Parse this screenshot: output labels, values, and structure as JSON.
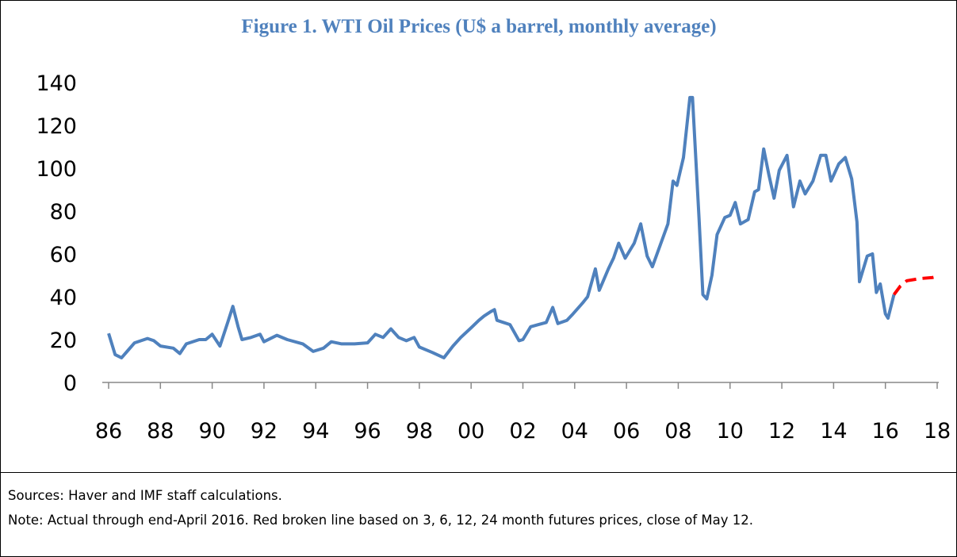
{
  "chart_data": {
    "type": "line",
    "title": "Figure 1. WTI Oil Prices (U$ a barrel, monthly average)",
    "notes": [
      "Sources: Haver and IMF staff calculations.",
      "Note: Actual through end-April 2016. Red broken line based on 3, 6, 12, 24 month futures prices, close of May 12."
    ],
    "xlim": [
      1986,
      2018
    ],
    "ylim": [
      0,
      140
    ],
    "yticks": [
      0,
      20,
      40,
      60,
      80,
      100,
      120,
      140
    ],
    "xticks": [
      {
        "value": 1986,
        "label": "86"
      },
      {
        "value": 1988,
        "label": "88"
      },
      {
        "value": 1990,
        "label": "90"
      },
      {
        "value": 1992,
        "label": "92"
      },
      {
        "value": 1994,
        "label": "94"
      },
      {
        "value": 1996,
        "label": "96"
      },
      {
        "value": 1998,
        "label": "98"
      },
      {
        "value": 2000,
        "label": "00"
      },
      {
        "value": 2002,
        "label": "02"
      },
      {
        "value": 2004,
        "label": "04"
      },
      {
        "value": 2006,
        "label": "06"
      },
      {
        "value": 2008,
        "label": "08"
      },
      {
        "value": 2010,
        "label": "10"
      },
      {
        "value": 2012,
        "label": "12"
      },
      {
        "value": 2014,
        "label": "14"
      },
      {
        "value": 2016,
        "label": "16"
      },
      {
        "value": 2018,
        "label": "18"
      }
    ],
    "grid": false,
    "series": [
      {
        "color": "#4f81bd",
        "line_style": "solid",
        "x": [
          1986.0,
          1986.25,
          1986.5,
          1986.75,
          1987.0,
          1987.5,
          1987.75,
          1988.0,
          1988.5,
          1988.75,
          1989.0,
          1989.5,
          1989.75,
          1990.0,
          1990.3,
          1990.6,
          1990.8,
          1991.0,
          1991.15,
          1991.5,
          1991.85,
          1992.0,
          1992.5,
          1992.9,
          1993.5,
          1993.9,
          1994.3,
          1994.6,
          1995.0,
          1995.5,
          1996.0,
          1996.3,
          1996.6,
          1996.9,
          1997.2,
          1997.5,
          1997.8,
          1998.0,
          1998.5,
          1998.95,
          1999.3,
          1999.6,
          2000.0,
          2000.3,
          2000.5,
          2000.75,
          2000.9,
          2001.0,
          2001.5,
          2001.85,
          2002.0,
          2002.3,
          2002.6,
          2002.9,
          2003.15,
          2003.35,
          2003.7,
          2003.9,
          2004.3,
          2004.5,
          2004.8,
          2004.95,
          2005.3,
          2005.5,
          2005.7,
          2005.95,
          2006.3,
          2006.55,
          2006.8,
          2007.0,
          2007.3,
          2007.6,
          2007.8,
          2007.95,
          2008.2,
          2008.45,
          2008.55,
          2008.8,
          2008.95,
          2009.1,
          2009.3,
          2009.5,
          2009.8,
          2010.0,
          2010.2,
          2010.4,
          2010.7,
          2010.95,
          2011.1,
          2011.3,
          2011.5,
          2011.7,
          2011.9,
          2012.2,
          2012.45,
          2012.7,
          2012.9,
          2013.2,
          2013.5,
          2013.7,
          2013.9,
          2014.2,
          2014.45,
          2014.7,
          2014.9,
          2015.0,
          2015.3,
          2015.5,
          2015.65,
          2015.8,
          2016.0,
          2016.1,
          2016.33
        ],
        "values": [
          22.9,
          13,
          11.5,
          15,
          18.5,
          20.5,
          19.5,
          17,
          16,
          13.5,
          18,
          20,
          20,
          22.5,
          17,
          28,
          35.5,
          26,
          20,
          21,
          22.5,
          19,
          22,
          20,
          18,
          14.5,
          16,
          19,
          18,
          18,
          18.5,
          22.5,
          21,
          25,
          21,
          19.5,
          21,
          16.5,
          14,
          11.5,
          17,
          21,
          25.5,
          29,
          31,
          33,
          34,
          29,
          27,
          19.5,
          20,
          26,
          27,
          28,
          35,
          27.5,
          29,
          31.5,
          37,
          40,
          53,
          43,
          53,
          58,
          65,
          58,
          65,
          74,
          59,
          54,
          64,
          74,
          94,
          92,
          105,
          133,
          133,
          77,
          41,
          39,
          50,
          69,
          77,
          78,
          84,
          74,
          76,
          89,
          90,
          109,
          97,
          86,
          99,
          106,
          82,
          94,
          88,
          94,
          106,
          106,
          94,
          102,
          105,
          95,
          75,
          47,
          59,
          60,
          42,
          46,
          32,
          30,
          41
        ]
      },
      {
        "color": "#ff0000",
        "line_style": "dashed",
        "x": [
          2016.33,
          2016.58,
          2016.83,
          2017.33,
          2017.83,
          2018.0
        ],
        "values": [
          41,
          45,
          47.5,
          48.5,
          49,
          49.5
        ]
      }
    ]
  }
}
